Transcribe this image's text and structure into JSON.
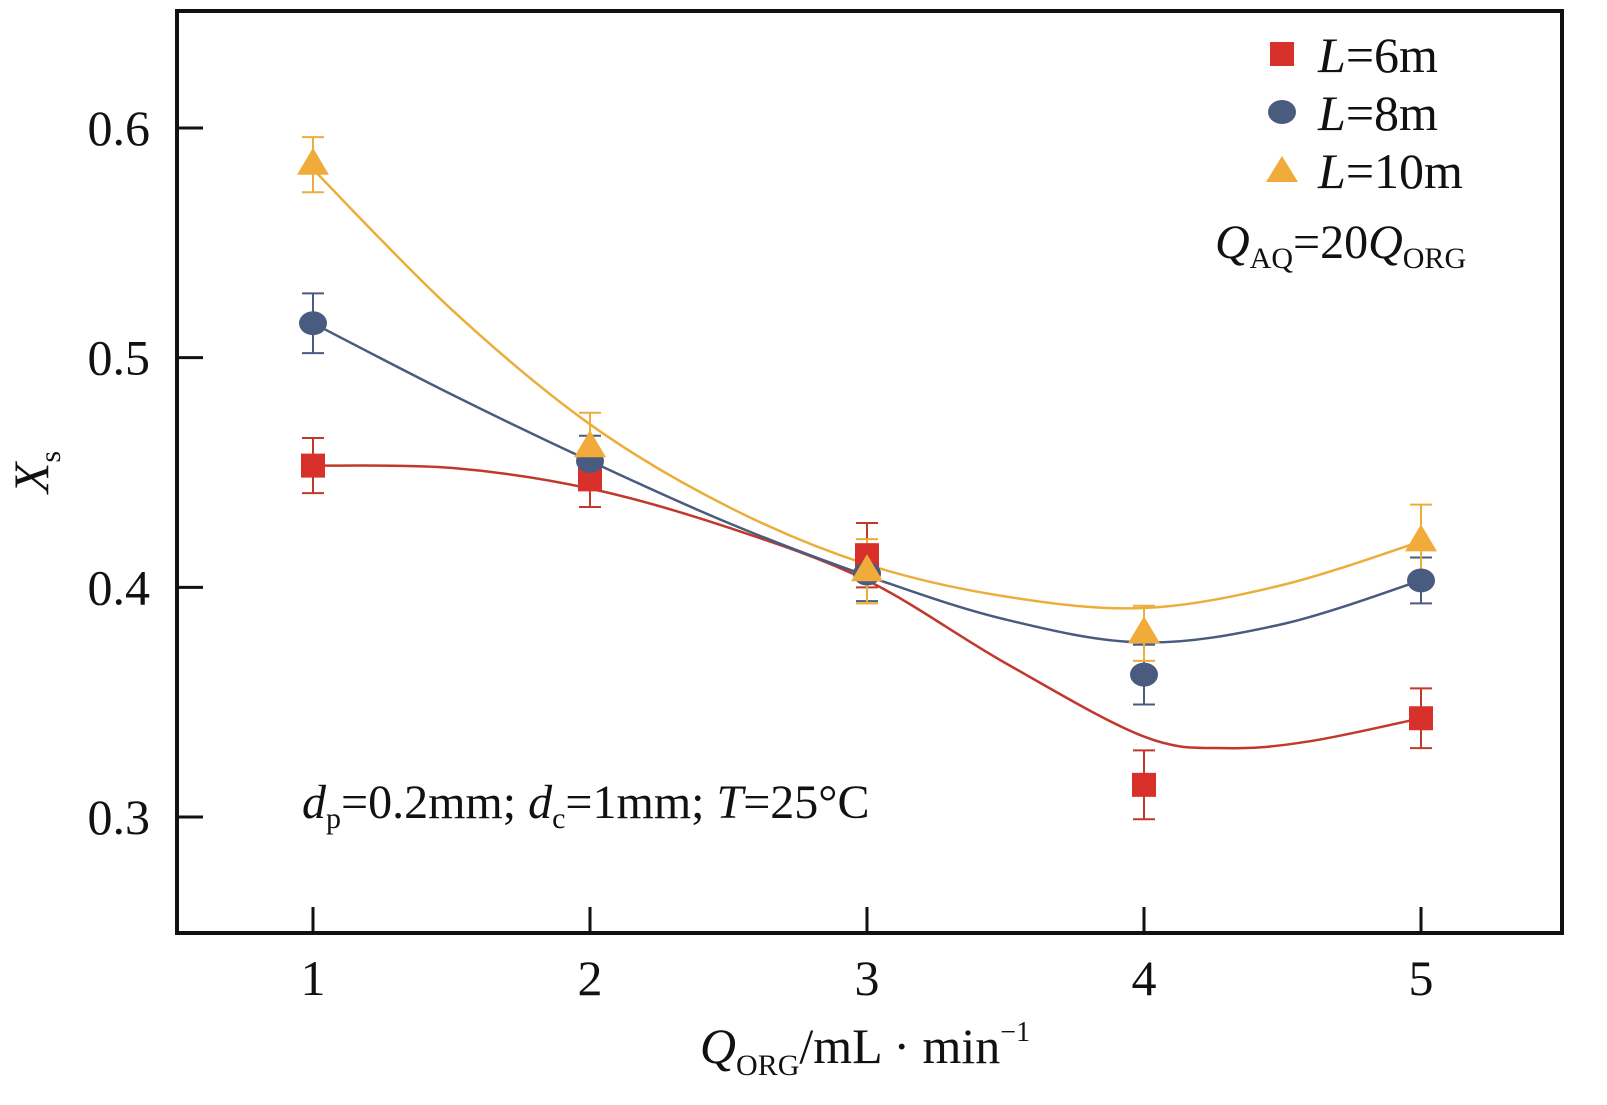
{
  "chart_data": {
    "type": "scatter",
    "xlabel": {
      "symbol": "Q",
      "subscript": "ORG",
      "unit": "/mL · min",
      "superscript": "−1"
    },
    "ylabel": {
      "symbol": "X",
      "subscript": "s"
    },
    "xlim": [
      0.5,
      5.5
    ],
    "ylim": [
      0.25,
      0.65
    ],
    "x_ticks": [
      1,
      2,
      3,
      4,
      5
    ],
    "x_tick_labels": [
      "1",
      "2",
      "3",
      "4",
      "5"
    ],
    "y_ticks": [
      0.3,
      0.4,
      0.5,
      0.6
    ],
    "y_tick_labels": [
      "0.3",
      "0.4",
      "0.5",
      "0.6"
    ],
    "grid": false,
    "legend_position": "top-right",
    "x": [
      1,
      2,
      3,
      4,
      5
    ],
    "series": [
      {
        "name": "L=6m",
        "var": "L",
        "value_text": "=6m",
        "marker": "square",
        "color": "#d8312b",
        "line_color": "#c0392b",
        "values": [
          0.453,
          0.447,
          0.414,
          0.314,
          0.343
        ],
        "errors": [
          0.012,
          0.012,
          0.014,
          0.015,
          0.013
        ],
        "fit_curve": [
          [
            1,
            0.453
          ],
          [
            1.5,
            0.452
          ],
          [
            2,
            0.443
          ],
          [
            2.5,
            0.426
          ],
          [
            3,
            0.403
          ],
          [
            3.5,
            0.367
          ],
          [
            4,
            0.335
          ],
          [
            4.3,
            0.33
          ],
          [
            4.6,
            0.333
          ],
          [
            5,
            0.343
          ]
        ]
      },
      {
        "name": "L=8m",
        "var": "L",
        "value_text": "=8m",
        "marker": "circle",
        "color": "#4a5b80",
        "line_color": "#4a5b80",
        "values": [
          0.515,
          0.455,
          0.406,
          0.362,
          0.403
        ],
        "errors": [
          0.013,
          0.011,
          0.012,
          0.013,
          0.01
        ],
        "fit_curve": [
          [
            1,
            0.515
          ],
          [
            1.5,
            0.484
          ],
          [
            2,
            0.455
          ],
          [
            2.5,
            0.428
          ],
          [
            3,
            0.405
          ],
          [
            3.5,
            0.386
          ],
          [
            4,
            0.376
          ],
          [
            4.5,
            0.384
          ],
          [
            5,
            0.403
          ]
        ]
      },
      {
        "name": "L=10m",
        "var": "L",
        "value_text": "=10m",
        "marker": "triangle",
        "color": "#f0ab3a",
        "line_color": "#ebae3a",
        "values": [
          0.584,
          0.461,
          0.407,
          0.38,
          0.42
        ],
        "errors": [
          0.012,
          0.015,
          0.014,
          0.012,
          0.016
        ],
        "fit_curve": [
          [
            1,
            0.582
          ],
          [
            1.5,
            0.521
          ],
          [
            2,
            0.471
          ],
          [
            2.5,
            0.435
          ],
          [
            3,
            0.41
          ],
          [
            3.5,
            0.396
          ],
          [
            4,
            0.391
          ],
          [
            4.5,
            0.401
          ],
          [
            5,
            0.42
          ]
        ]
      }
    ],
    "annotations": {
      "flow_ratio": {
        "q1": "Q",
        "q1_sub": "AQ",
        "mid": "=20",
        "q2": "Q",
        "q2_sub": "ORG"
      },
      "conditions": {
        "a": "d",
        "a_sub": "p",
        "a_val": "=0.2mm; ",
        "b": "d",
        "b_sub": "c",
        "b_val": "=1mm; ",
        "c": "T",
        "c_val": "=25°C"
      }
    }
  }
}
